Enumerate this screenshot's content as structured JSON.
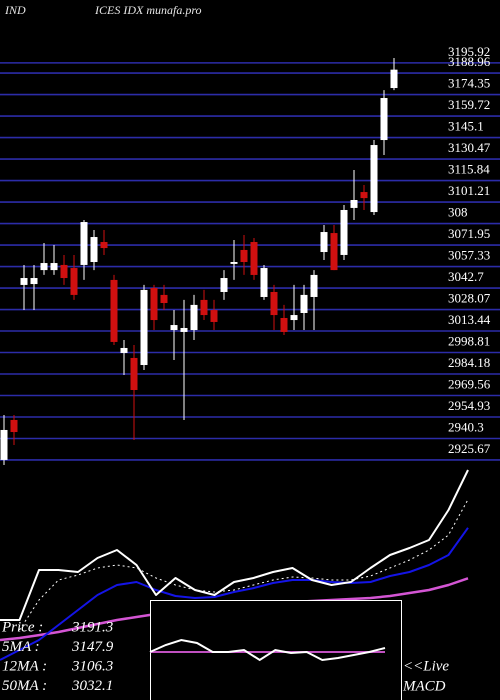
{
  "chart_data": [
    {
      "type": "candlestick",
      "title_left": "IND",
      "title_right": "ICES IDX munafa.pro",
      "ylim": [
        2924.3,
        3238.7
      ],
      "yticks": [
        3195.92,
        3188.96,
        3174.35,
        3159.72,
        3145.1,
        3130.47,
        3115.84,
        3101.21,
        {
          "value": 3086.58,
          "label": "308"
        },
        3071.95,
        3057.33,
        3042.7,
        3028.07,
        3013.44,
        2998.81,
        2984.18,
        2969.56,
        2954.93,
        2940.3,
        2925.67
      ],
      "grid": true,
      "grid_color": "#2c2ca8",
      "up_color": "#ffffff",
      "down_color": "#d01010",
      "open": [
        2925.7,
        2952.9,
        3044.8,
        3045.4,
        3054.9,
        3054.9,
        3058.4,
        3056.3,
        3058.4,
        3060.4,
        3074.0,
        3048.2,
        2998.5,
        2995.1,
        2990.3,
        3042.7,
        3038.0,
        3014.1,
        3012.8,
        3014.1,
        3034.6,
        3027.7,
        3040.0,
        3059.1,
        3068.6,
        3074.0,
        3036.6,
        3040.0,
        3022.3,
        3020.9,
        3025.7,
        3036.6,
        3067.2,
        3080.1,
        3065.2,
        3097.2,
        3108.0,
        3094.4,
        3143.4,
        3178.8
      ],
      "high": [
        2956.3,
        2956.3,
        3058.4,
        3058.4,
        3073.3,
        3072.0,
        3065.2,
        3065.2,
        3089.0,
        3082.2,
        3082.2,
        3051.6,
        3007.3,
        3003.9,
        3044.8,
        3044.8,
        3044.8,
        3027.7,
        3034.6,
        3038.0,
        3041.4,
        3034.6,
        3054.9,
        3075.4,
        3078.8,
        3076.7,
        3058.4,
        3044.8,
        3031.2,
        3044.8,
        3044.8,
        3054.9,
        3085.6,
        3085.6,
        3099.2,
        3123.0,
        3112.8,
        3143.4,
        3177.4,
        3199.2
      ],
      "low": [
        2922.3,
        2935.9,
        3027.7,
        3027.7,
        3051.6,
        3051.6,
        3044.8,
        3034.6,
        3048.2,
        3054.9,
        3065.2,
        3003.9,
        2983.5,
        2939.3,
        2986.9,
        3014.1,
        3027.7,
        2993.7,
        2952.9,
        3007.3,
        3020.9,
        3014.1,
        3034.6,
        3048.2,
        3051.6,
        3048.2,
        3034.6,
        3014.1,
        3010.7,
        3014.1,
        3014.1,
        3014.1,
        3061.8,
        3054.9,
        3061.8,
        3089.0,
        3095.8,
        3092.4,
        3133.2,
        3177.4
      ],
      "close": [
        2946.1,
        2944.7,
        3049.5,
        3049.5,
        3059.7,
        3059.7,
        3049.5,
        3038.0,
        3087.6,
        3077.4,
        3069.9,
        3006.0,
        3001.9,
        2973.3,
        3041.4,
        3020.9,
        3032.5,
        3017.5,
        3015.5,
        3031.2,
        3024.3,
        3019.6,
        3049.5,
        3060.4,
        3060.4,
        3051.6,
        3056.3,
        3024.3,
        3012.8,
        3024.3,
        3038.0,
        3051.6,
        3080.8,
        3054.9,
        3095.8,
        3102.6,
        3103.9,
        3140.0,
        3172.0,
        3191.3
      ]
    },
    {
      "type": "line",
      "ylim": [
        2853.1,
        3191.3
      ],
      "series": [
        {
          "name": "Price",
          "color": "#ffffff",
          "style": "solid",
          "width": 2,
          "values": [
            2970.7,
            2970.7,
            3044.2,
            3044.2,
            3041.3,
            3061.9,
            3073.7,
            3051.6,
            3007.5,
            3032.5,
            3014.8,
            3007.5,
            3026.6,
            3032.5,
            3041.3,
            3047.2,
            3029.5,
            3022.2,
            3026.6,
            3047.2,
            3066.3,
            3076.6,
            3088.4,
            3132.5,
            3191.3
          ]
        },
        {
          "name": "5MA",
          "color": "#ffffff",
          "style": "dotted",
          "width": 1,
          "values": [
            null,
            2956.0,
            3000.1,
            3029.5,
            3036.9,
            3047.2,
            3051.6,
            3047.2,
            3032.5,
            3022.2,
            3014.8,
            3011.9,
            3014.8,
            3022.2,
            3029.5,
            3033.9,
            3032.5,
            3029.5,
            3029.5,
            3035.4,
            3047.2,
            3058.9,
            3073.7,
            3095.7,
            3147.9
          ]
        },
        {
          "name": "12MA",
          "color": "#1414e6",
          "style": "solid",
          "width": 2,
          "values": [
            2911.9,
            2926.6,
            2941.3,
            2963.4,
            2985.4,
            3007.5,
            3022.2,
            3026.6,
            3014.8,
            3006.0,
            3003.1,
            3004.5,
            3011.9,
            3017.7,
            3025.1,
            3029.5,
            3029.5,
            3026.6,
            3025.1,
            3026.6,
            3035.4,
            3041.3,
            3051.6,
            3066.3,
            3106.3
          ]
        },
        {
          "name": "50MA",
          "color": "#d455d4",
          "style": "solid",
          "width": 2.5,
          "values": [
            2941.3,
            2944.2,
            2948.6,
            2953.1,
            2959.0,
            2964.8,
            2970.7,
            2975.1,
            2979.5,
            2982.5,
            2985.4,
            2988.3,
            2989.8,
            2992.8,
            2994.2,
            2997.2,
            2998.6,
            3000.1,
            3001.6,
            3003.1,
            3006.0,
            3010.4,
            3014.8,
            3022.2,
            3032.1
          ]
        }
      ],
      "legend": [
        {
          "label": "Price  :",
          "value": 3191.3
        },
        {
          "label": "5MA :",
          "value": 3147.9
        },
        {
          "label": "12MA :",
          "value": 3106.3
        },
        {
          "label": "50MA :",
          "value": 3032.1
        }
      ]
    },
    {
      "type": "macd",
      "ylim": [
        -48,
        52
      ],
      "border_color": "#ffffff",
      "notes": [
        "<<Live",
        "MACD"
      ],
      "series": [
        {
          "name": "MACD",
          "color": "#ffffff",
          "values": [
            0,
            7,
            12,
            9,
            0,
            0,
            2,
            -8,
            2,
            -1,
            0,
            -8,
            -6,
            -3,
            0,
            4
          ]
        },
        {
          "name": "Signal",
          "color": "#c050c0",
          "values": [
            0,
            0,
            0,
            0,
            0,
            0,
            0,
            0,
            0,
            0,
            0,
            0,
            0,
            0,
            0,
            0
          ]
        }
      ]
    }
  ]
}
